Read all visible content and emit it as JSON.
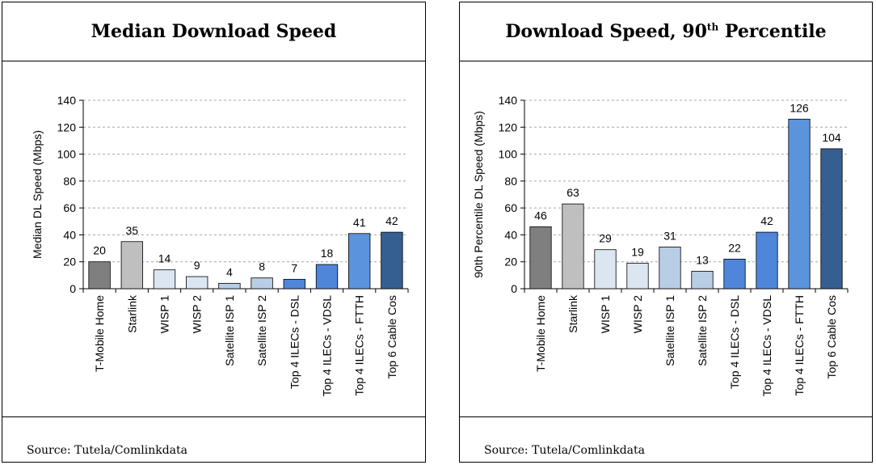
{
  "colors": {
    "t_mobile": "#7f7f7f",
    "starlink": "#bfbfbf",
    "wisp": "#dce6f2",
    "satellite": "#b9cde5",
    "ilec_dsl": "#4f86d9",
    "ilec_vdsl": "#4f86d9",
    "ilec_ftth": "#5b93dc",
    "cable": "#355f91",
    "grid": "#a6a6a6"
  },
  "chart_data": [
    {
      "type": "bar",
      "title_text": "Median Download Speed",
      "title_sup": "",
      "ylabel": "Median DL Speed (Mbps)",
      "ylim": [
        0,
        140
      ],
      "yticks": [
        0,
        20,
        40,
        60,
        80,
        100,
        120,
        140
      ],
      "categories": [
        "T-Mobile Home",
        "Starlink",
        "WISP 1",
        "WISP 2",
        "Satellite ISP 1",
        "Satellite ISP 2",
        "Top 4 ILECs - DSL",
        "Top 4 ILECs - VDSL",
        "Top 4 ILECs - FTTH",
        "Top 6 Cable Cos"
      ],
      "values": [
        20,
        35,
        14,
        9,
        4,
        8,
        7,
        18,
        41,
        42
      ],
      "grid": true,
      "source": "Source: Tutela/Comlinkdata"
    },
    {
      "type": "bar",
      "title_text": "Download Speed, 90",
      "title_sup": "th",
      "title_suffix": " Percentile",
      "ylabel": "90th Percentile DL Speed (Mbps)",
      "ylim": [
        0,
        140
      ],
      "yticks": [
        0,
        20,
        40,
        60,
        80,
        100,
        120,
        140
      ],
      "categories": [
        "T-Mobile Home",
        "Starlink",
        "WISP 1",
        "WISP 2",
        "Satellite ISP 1",
        "Satellite ISP 2",
        "Top 4 ILECs - DSL",
        "Top 4 ILECs - VDSL",
        "Top 4 ILECs - FTTH",
        "Top 6 Cable Cos"
      ],
      "values": [
        46,
        63,
        29,
        19,
        31,
        13,
        22,
        42,
        126,
        104
      ],
      "grid": true,
      "source": "Source: Tutela/Comlinkdata"
    }
  ]
}
